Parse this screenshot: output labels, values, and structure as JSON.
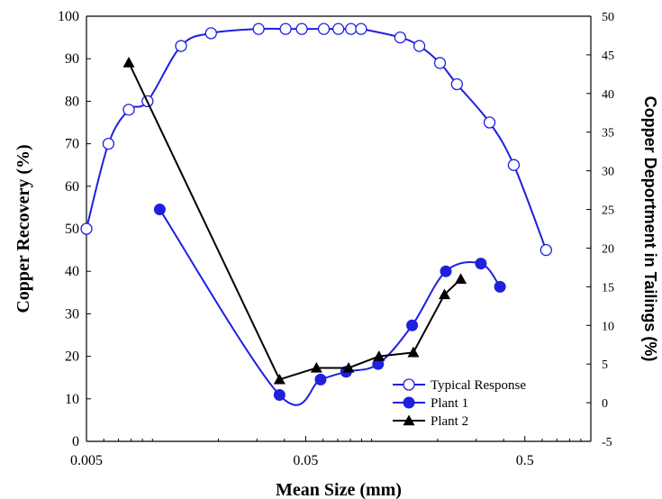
{
  "chart_data": {
    "type": "line",
    "xlabel": "Mean Size (mm)",
    "ylabel": "Copper Recovery (%)",
    "y2label": "Copper Deportment in Tailings (%)",
    "xscale": "log",
    "xlim": [
      0.005,
      1
    ],
    "ylim": [
      0,
      100
    ],
    "y2lim": [
      -5,
      50
    ],
    "x_ticks": [
      "0.005",
      "0.05",
      "0.5"
    ],
    "y_ticks": [
      "0",
      "10",
      "20",
      "30",
      "40",
      "50",
      "60",
      "70",
      "80",
      "90",
      "100"
    ],
    "y2_ticks": [
      "-5",
      "0",
      "5",
      "10",
      "15",
      "20",
      "25",
      "30",
      "35",
      "40",
      "45",
      "50"
    ],
    "grid": false,
    "legend_position": "bottom-right",
    "series": [
      {
        "name": "Typical Response",
        "axis": "left",
        "color": "#1f1fe0",
        "marker": "open-circle",
        "x": [
          0.005,
          0.0063,
          0.0078,
          0.0095,
          0.0135,
          0.0185,
          0.0305,
          0.0405,
          0.048,
          0.0605,
          0.0705,
          0.0805,
          0.0895,
          0.135,
          0.165,
          0.205,
          0.245,
          0.345,
          0.445,
          0.625
        ],
        "y": [
          50,
          70,
          78,
          80,
          93,
          96,
          97,
          97,
          97,
          97,
          97,
          97,
          97,
          95,
          93,
          89,
          84,
          75,
          65,
          45
        ]
      },
      {
        "name": "Plant 1",
        "axis": "right",
        "color": "#1f1fe0",
        "marker": "filled-circle",
        "x": [
          0.0108,
          0.038,
          0.0585,
          0.0765,
          0.107,
          0.153,
          0.218,
          0.315,
          0.385
        ],
        "y": [
          25,
          1,
          3,
          4,
          5,
          10,
          17,
          18,
          15
        ]
      },
      {
        "name": "Plant 2",
        "axis": "right",
        "color": "#000000",
        "marker": "filled-triangle",
        "x": [
          0.0078,
          0.038,
          0.056,
          0.0785,
          0.108,
          0.155,
          0.215,
          0.255
        ],
        "y": [
          44,
          3,
          4.5,
          4.5,
          6,
          6.5,
          14,
          16
        ]
      }
    ]
  }
}
